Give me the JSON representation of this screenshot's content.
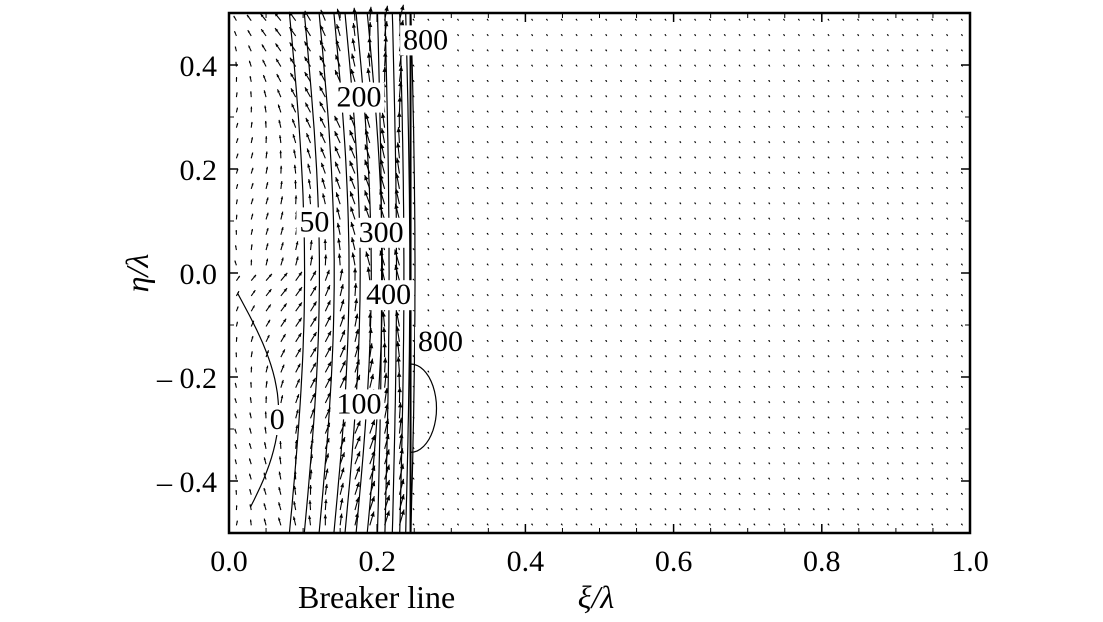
{
  "chart_data": {
    "type": "quiver-contour",
    "title": "",
    "xlabel": "ξ/λ",
    "ylabel": "η/λ",
    "xlim": [
      0.0,
      1.0
    ],
    "ylim": [
      -0.5,
      0.5
    ],
    "x_ticks": [
      {
        "value": 0.0,
        "label": "0.0"
      },
      {
        "value": 0.2,
        "label": "0.2"
      },
      {
        "value": 0.4,
        "label": "0.4"
      },
      {
        "value": 0.6,
        "label": "0.6"
      },
      {
        "value": 0.8,
        "label": "0.8"
      },
      {
        "value": 1.0,
        "label": "1.0"
      }
    ],
    "y_ticks": [
      {
        "value": 0.4,
        "label": "0.4"
      },
      {
        "value": 0.2,
        "label": "0.2"
      },
      {
        "value": 0.0,
        "label": "0.0"
      },
      {
        "value": -0.2,
        "label": "– 0.2"
      },
      {
        "value": -0.4,
        "label": "– 0.4"
      }
    ],
    "annotations": [
      {
        "text": "Breaker line",
        "x": 0.05,
        "placement": "below-x-axis"
      }
    ],
    "breaker_line_x": 0.245,
    "contour_labels": [
      {
        "text": "800",
        "x": 0.235,
        "y": 0.43
      },
      {
        "text": "200",
        "x": 0.145,
        "y": 0.32
      },
      {
        "text": "50",
        "x": 0.095,
        "y": 0.08
      },
      {
        "text": "300",
        "x": 0.175,
        "y": 0.06
      },
      {
        "text": "400",
        "x": 0.185,
        "y": -0.06
      },
      {
        "text": "800",
        "x": 0.255,
        "y": -0.15
      },
      {
        "text": "100",
        "x": 0.145,
        "y": -0.27
      },
      {
        "text": "0",
        "x": 0.055,
        "y": -0.3
      }
    ],
    "grid": false,
    "legend": "none"
  }
}
